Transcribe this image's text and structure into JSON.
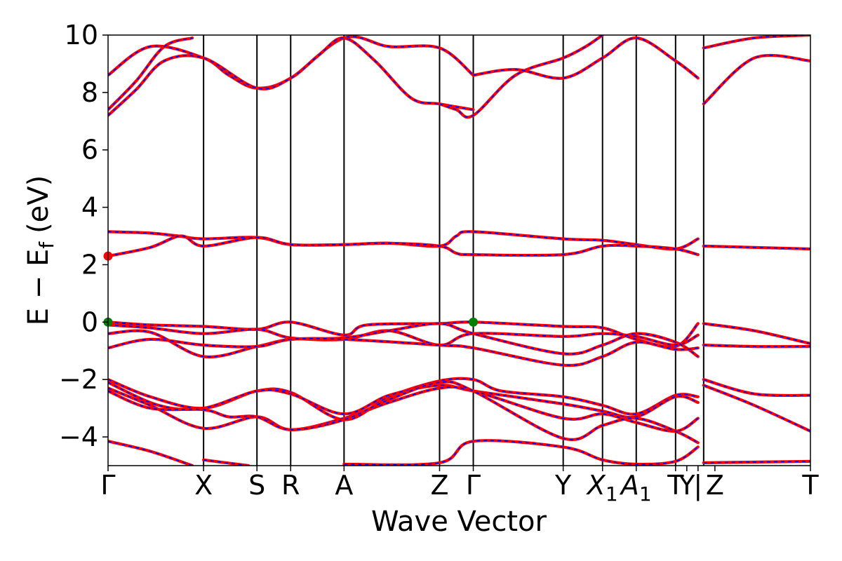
{
  "chart_data": {
    "type": "line",
    "title": "",
    "xlabel": "Wave Vector",
    "ylabel": "E − E",
    "ylabel_subscript": "f",
    "ylabel_unit": "(eV)",
    "ylim": [
      -5,
      10
    ],
    "yticks": [
      -4,
      -2,
      0,
      2,
      4,
      6,
      8,
      10
    ],
    "ytick_labels": [
      "−4",
      "−2",
      "0",
      "2",
      "4",
      "6",
      "8",
      "10"
    ],
    "xlim": [
      0,
      25
    ],
    "kpoints": [
      {
        "label": "Γ",
        "x": 0
      },
      {
        "label": "X",
        "x": 3.4
      },
      {
        "label": "S",
        "x": 5.3
      },
      {
        "label": "R",
        "x": 6.5
      },
      {
        "label": "A",
        "x": 8.4
      },
      {
        "label": "Z",
        "x": 11.8
      },
      {
        "label": "Γ",
        "x": 13.0
      },
      {
        "label": "Y",
        "x": 16.2
      },
      {
        "label": "X",
        "sub": "1",
        "italic": true,
        "x": 17.6
      },
      {
        "label": "A",
        "sub": "1",
        "italic": true,
        "x": 18.8
      },
      {
        "label": "T",
        "x": 20.2
      },
      {
        "label": "Y",
        "x": 20.6
      },
      {
        "label": "|",
        "x": 21.0
      },
      {
        "label": "Z",
        "x": 21.6
      },
      {
        "label": "T",
        "x": 25.0
      }
    ],
    "vertical_lines": [
      3.4,
      5.3,
      6.5,
      8.4,
      11.8,
      13.0,
      16.2,
      17.6,
      18.8,
      20.2,
      21.2
    ],
    "colors": {
      "band": "#ff0000",
      "band_overlay": "#0000ff",
      "vbm_marker": "#008000",
      "cbm_marker": "#ff0000"
    },
    "series": [
      {
        "segment": 1,
        "values": [
          [
            0,
            8.6
          ],
          [
            1.5,
            9.6
          ],
          [
            3.4,
            9.2
          ],
          [
            4.3,
            8.6
          ],
          [
            5.3,
            8.15
          ],
          [
            6.5,
            8.5
          ],
          [
            8.4,
            9.9
          ],
          [
            10.0,
            9.6
          ],
          [
            11.8,
            9.55
          ],
          [
            13.0,
            8.6
          ]
        ]
      },
      {
        "segment": 1,
        "values": [
          [
            0,
            7.4
          ],
          [
            1.0,
            8.4
          ],
          [
            2.0,
            9.6
          ],
          [
            3.0,
            9.9
          ]
        ]
      },
      {
        "segment": 1,
        "values": [
          [
            0,
            7.2
          ],
          [
            1.0,
            8.1
          ],
          [
            2.0,
            9.1
          ],
          [
            3.4,
            9.2
          ],
          [
            5.3,
            8.15
          ],
          [
            6.5,
            8.5
          ],
          [
            7.5,
            9.3
          ],
          [
            8.4,
            9.9
          ],
          [
            9.5,
            9.1
          ],
          [
            10.8,
            7.8
          ],
          [
            11.8,
            7.6
          ],
          [
            13.0,
            7.4
          ]
        ]
      },
      {
        "segment": 1,
        "values": [
          [
            11.8,
            7.6
          ],
          [
            12.4,
            7.4
          ],
          [
            13.0,
            7.2
          ],
          [
            14.5,
            8.6
          ],
          [
            16.2,
            9.2
          ],
          [
            17.0,
            9.6
          ],
          [
            17.6,
            10.0
          ]
        ]
      },
      {
        "segment": 1,
        "values": [
          [
            13.0,
            8.6
          ],
          [
            14.5,
            8.8
          ],
          [
            16.2,
            8.5
          ],
          [
            17.6,
            9.2
          ],
          [
            18.8,
            9.9
          ],
          [
            20.2,
            9.1
          ],
          [
            21.0,
            8.5
          ]
        ]
      },
      {
        "segment": 1,
        "values": [
          [
            0,
            3.15
          ],
          [
            1.5,
            3.1
          ],
          [
            2.5,
            3.0
          ],
          [
            3.4,
            2.9
          ],
          [
            5.3,
            2.95
          ],
          [
            6.5,
            2.7
          ],
          [
            8.4,
            2.7
          ],
          [
            10.0,
            2.75
          ],
          [
            11.8,
            2.65
          ],
          [
            12.4,
            3.0
          ],
          [
            13.0,
            3.15
          ],
          [
            16.2,
            2.9
          ],
          [
            17.6,
            2.85
          ],
          [
            18.8,
            2.7
          ],
          [
            20.2,
            2.55
          ],
          [
            21.0,
            2.9
          ]
        ]
      },
      {
        "segment": 1,
        "values": [
          [
            0,
            2.3
          ],
          [
            1.5,
            2.6
          ],
          [
            2.6,
            3.0
          ],
          [
            3.4,
            2.65
          ],
          [
            5.3,
            2.95
          ],
          [
            6.5,
            2.7
          ],
          [
            8.4,
            2.7
          ],
          [
            10.0,
            2.75
          ],
          [
            11.8,
            2.65
          ],
          [
            12.4,
            2.4
          ],
          [
            13.0,
            2.35
          ],
          [
            16.2,
            2.35
          ],
          [
            17.6,
            2.65
          ],
          [
            18.8,
            2.65
          ],
          [
            20.2,
            2.55
          ],
          [
            21.0,
            2.35
          ]
        ]
      },
      {
        "segment": 1,
        "values": [
          [
            0,
            0.0
          ],
          [
            1.5,
            -0.1
          ],
          [
            3.4,
            -0.15
          ],
          [
            5.3,
            -0.25
          ],
          [
            6.5,
            0.0
          ],
          [
            8.4,
            -0.45
          ],
          [
            9.2,
            -0.1
          ],
          [
            11.8,
            -0.05
          ],
          [
            13.0,
            0.0
          ],
          [
            16.2,
            -0.15
          ],
          [
            17.6,
            -0.2
          ],
          [
            18.8,
            -0.6
          ],
          [
            20.2,
            -0.85
          ],
          [
            21.0,
            -0.05
          ]
        ]
      },
      {
        "segment": 1,
        "values": [
          [
            0,
            -0.1
          ],
          [
            1.5,
            -0.2
          ],
          [
            3.4,
            -0.4
          ],
          [
            5.3,
            -0.25
          ],
          [
            6.5,
            -0.55
          ],
          [
            8.4,
            -0.6
          ],
          [
            10.0,
            -0.3
          ],
          [
            11.8,
            -0.8
          ],
          [
            13.0,
            -0.4
          ],
          [
            16.2,
            -0.5
          ],
          [
            17.6,
            -0.4
          ],
          [
            18.8,
            -0.5
          ],
          [
            20.2,
            -0.8
          ],
          [
            21.0,
            -0.45
          ]
        ]
      },
      {
        "segment": 1,
        "values": [
          [
            0,
            -0.4
          ],
          [
            1.5,
            -0.35
          ],
          [
            3.4,
            -1.2
          ],
          [
            5.3,
            -0.85
          ],
          [
            6.5,
            -0.6
          ],
          [
            8.4,
            -0.55
          ],
          [
            10.0,
            -0.3
          ],
          [
            11.8,
            -0.05
          ],
          [
            13.0,
            -0.4
          ],
          [
            16.2,
            -1.1
          ],
          [
            17.6,
            -0.8
          ],
          [
            18.8,
            -0.4
          ],
          [
            20.2,
            -0.7
          ],
          [
            21.0,
            -1.2
          ]
        ]
      },
      {
        "segment": 1,
        "values": [
          [
            0,
            -0.9
          ],
          [
            1.5,
            -0.6
          ],
          [
            3.4,
            -0.8
          ],
          [
            5.3,
            -0.85
          ],
          [
            6.5,
            -0.6
          ],
          [
            8.4,
            -0.6
          ],
          [
            11.8,
            -0.8
          ],
          [
            13.0,
            -0.9
          ],
          [
            16.2,
            -1.5
          ],
          [
            17.6,
            -1.2
          ],
          [
            18.8,
            -0.7
          ],
          [
            20.2,
            -0.95
          ],
          [
            21.0,
            -0.9
          ]
        ]
      },
      {
        "segment": 1,
        "values": [
          [
            0,
            -2.0
          ],
          [
            1.5,
            -2.6
          ],
          [
            3.4,
            -3.0
          ],
          [
            5.3,
            -2.4
          ],
          [
            6.5,
            -2.45
          ],
          [
            8.4,
            -3.4
          ],
          [
            10.0,
            -2.6
          ],
          [
            11.8,
            -2.05
          ],
          [
            13.0,
            -2.0
          ],
          [
            14.0,
            -2.4
          ],
          [
            16.2,
            -2.6
          ],
          [
            17.6,
            -2.9
          ],
          [
            18.8,
            -3.2
          ],
          [
            20.2,
            -2.55
          ],
          [
            21.0,
            -2.6
          ]
        ]
      },
      {
        "segment": 1,
        "values": [
          [
            0,
            -2.1
          ],
          [
            1.8,
            -2.9
          ],
          [
            3.4,
            -3.0
          ],
          [
            5.3,
            -2.4
          ],
          [
            6.5,
            -2.5
          ],
          [
            8.4,
            -3.2
          ],
          [
            10.0,
            -2.55
          ],
          [
            11.8,
            -2.2
          ],
          [
            13.0,
            -2.4
          ],
          [
            16.2,
            -2.85
          ],
          [
            17.6,
            -3.1
          ],
          [
            18.8,
            -3.3
          ],
          [
            20.2,
            -2.6
          ],
          [
            21.0,
            -2.8
          ]
        ]
      },
      {
        "segment": 1,
        "values": [
          [
            0,
            -2.3
          ],
          [
            1.5,
            -2.9
          ],
          [
            3.4,
            -3.7
          ],
          [
            5.3,
            -3.3
          ],
          [
            6.5,
            -3.75
          ],
          [
            8.4,
            -3.35
          ],
          [
            10.0,
            -2.8
          ],
          [
            11.8,
            -2.3
          ],
          [
            13.0,
            -2.4
          ],
          [
            16.2,
            -3.35
          ],
          [
            17.6,
            -3.2
          ],
          [
            18.8,
            -3.5
          ],
          [
            20.2,
            -3.8
          ],
          [
            21.0,
            -3.35
          ]
        ]
      },
      {
        "segment": 1,
        "values": [
          [
            0,
            -2.4
          ],
          [
            1.5,
            -3.0
          ],
          [
            3.4,
            -3.05
          ],
          [
            4.3,
            -3.3
          ],
          [
            5.3,
            -3.3
          ],
          [
            6.5,
            -3.75
          ],
          [
            8.4,
            -3.4
          ],
          [
            10.0,
            -2.7
          ],
          [
            11.8,
            -2.1
          ],
          [
            13.0,
            -2.4
          ],
          [
            16.2,
            -4.05
          ],
          [
            17.6,
            -3.6
          ],
          [
            18.8,
            -3.35
          ],
          [
            20.2,
            -3.8
          ],
          [
            21.0,
            -4.2
          ]
        ]
      },
      {
        "segment": 1,
        "values": [
          [
            0,
            -4.15
          ],
          [
            1.5,
            -4.5
          ],
          [
            3.0,
            -5.0
          ]
        ]
      },
      {
        "segment": 1,
        "values": [
          [
            3.4,
            -4.8
          ],
          [
            5.0,
            -5.0
          ]
        ]
      },
      {
        "segment": 1,
        "values": [
          [
            8.4,
            -4.95
          ],
          [
            11.8,
            -4.9
          ],
          [
            13.0,
            -4.15
          ],
          [
            16.2,
            -4.35
          ],
          [
            17.6,
            -4.8
          ],
          [
            18.8,
            -4.95
          ],
          [
            20.2,
            -4.85
          ],
          [
            21.0,
            -4.35
          ]
        ]
      },
      {
        "segment": 2,
        "values": [
          [
            21.2,
            9.55
          ],
          [
            23.0,
            9.9
          ],
          [
            25.0,
            10.0
          ]
        ]
      },
      {
        "segment": 2,
        "values": [
          [
            21.2,
            7.6
          ],
          [
            23.0,
            9.2
          ],
          [
            25.0,
            9.1
          ]
        ]
      },
      {
        "segment": 2,
        "values": [
          [
            21.2,
            2.65
          ],
          [
            25.0,
            2.55
          ]
        ]
      },
      {
        "segment": 2,
        "values": [
          [
            21.2,
            -0.05
          ],
          [
            23.0,
            -0.3
          ],
          [
            25.0,
            -0.75
          ]
        ]
      },
      {
        "segment": 2,
        "values": [
          [
            21.2,
            -0.8
          ],
          [
            23.0,
            -0.85
          ],
          [
            25.0,
            -0.85
          ]
        ]
      },
      {
        "segment": 2,
        "values": [
          [
            21.2,
            -2.0
          ],
          [
            23.0,
            -2.5
          ],
          [
            25.0,
            -2.55
          ]
        ]
      },
      {
        "segment": 2,
        "values": [
          [
            21.2,
            -2.2
          ],
          [
            23.0,
            -2.9
          ],
          [
            25.0,
            -3.8
          ]
        ]
      },
      {
        "segment": 2,
        "values": [
          [
            21.2,
            -4.9
          ],
          [
            25.0,
            -4.85
          ]
        ]
      }
    ],
    "markers": [
      {
        "x": 0.0,
        "y": 0.0,
        "color": "#008000"
      },
      {
        "x": 13.0,
        "y": 0.0,
        "color": "#008000"
      },
      {
        "x": 0.0,
        "y": 2.3,
        "color": "#ff0000"
      }
    ]
  }
}
